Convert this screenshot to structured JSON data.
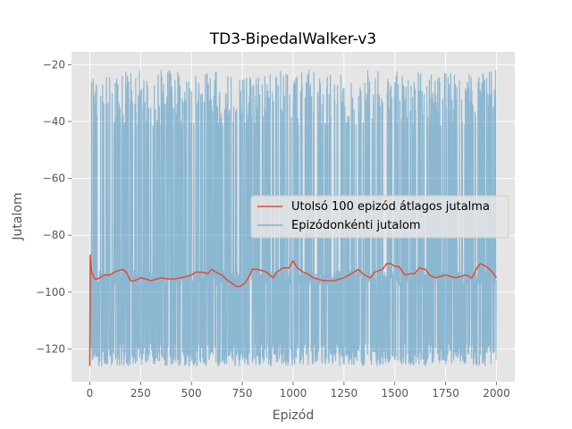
{
  "chart_data": {
    "type": "line",
    "title": "TD3-BipedalWalker-v3",
    "xlabel": "Epizód",
    "ylabel": "Jutalom",
    "xlim": [
      -90,
      2090
    ],
    "ylim": [
      -131.5,
      -15.5
    ],
    "xticks": [
      0,
      250,
      500,
      750,
      1000,
      1250,
      1500,
      1750,
      2000
    ],
    "yticks": [
      -120,
      -100,
      -80,
      -60,
      -40,
      -20
    ],
    "xtick_labels": [
      "0",
      "250",
      "500",
      "750",
      "1000",
      "1250",
      "1500",
      "1750",
      "2000"
    ],
    "ytick_labels": [
      "−120",
      "−100",
      "−80",
      "−60",
      "−40",
      "−20"
    ],
    "grid": true,
    "legend_position": "center-right",
    "series": [
      {
        "name": "Utolsó 100 epizód átlagos jutalma",
        "color": "#e24a33",
        "x": [
          0,
          2,
          5,
          10,
          20,
          30,
          50,
          70,
          100,
          120,
          140,
          160,
          180,
          200,
          220,
          250,
          280,
          300,
          350,
          400,
          450,
          500,
          520,
          550,
          580,
          600,
          620,
          650,
          680,
          700,
          720,
          740,
          760,
          780,
          800,
          820,
          850,
          870,
          900,
          920,
          950,
          980,
          1000,
          1020,
          1050,
          1080,
          1100,
          1150,
          1200,
          1250,
          1300,
          1320,
          1350,
          1380,
          1400,
          1420,
          1440,
          1460,
          1480,
          1500,
          1520,
          1550,
          1580,
          1600,
          1620,
          1650,
          1670,
          1700,
          1750,
          1800,
          1850,
          1880,
          1900,
          1920,
          1950,
          1980,
          2000
        ],
        "y": [
          -126,
          -87,
          -90,
          -93,
          -95,
          -95.5,
          -95,
          -94,
          -94,
          -93,
          -92.5,
          -92,
          -93,
          -96,
          -96,
          -95,
          -95.5,
          -96,
          -95,
          -95.5,
          -95,
          -94,
          -93,
          -93,
          -93.5,
          -92,
          -93,
          -94,
          -96,
          -97,
          -98,
          -98,
          -97,
          -95,
          -92,
          -92,
          -92.5,
          -93,
          -95,
          -93,
          -91.5,
          -91.5,
          -89,
          -91.5,
          -93,
          -94,
          -95,
          -96,
          -96,
          -95,
          -93,
          -92,
          -94,
          -95,
          -93,
          -92.5,
          -92,
          -90,
          -90,
          -91,
          -91,
          -94,
          -93.5,
          -93.5,
          -91.5,
          -92,
          -94,
          -95,
          -94,
          -95,
          -94,
          -95,
          -92,
          -90,
          -91,
          -93,
          -95
        ]
      },
      {
        "name": "Epizódonkénti jutalom",
        "color": "#348abd"
      }
    ],
    "episode_rewards_summary": {
      "count": 2000,
      "typical_high": -22,
      "typical_mid": -95,
      "typical_low": -122,
      "min": -126,
      "max": -20
    }
  }
}
